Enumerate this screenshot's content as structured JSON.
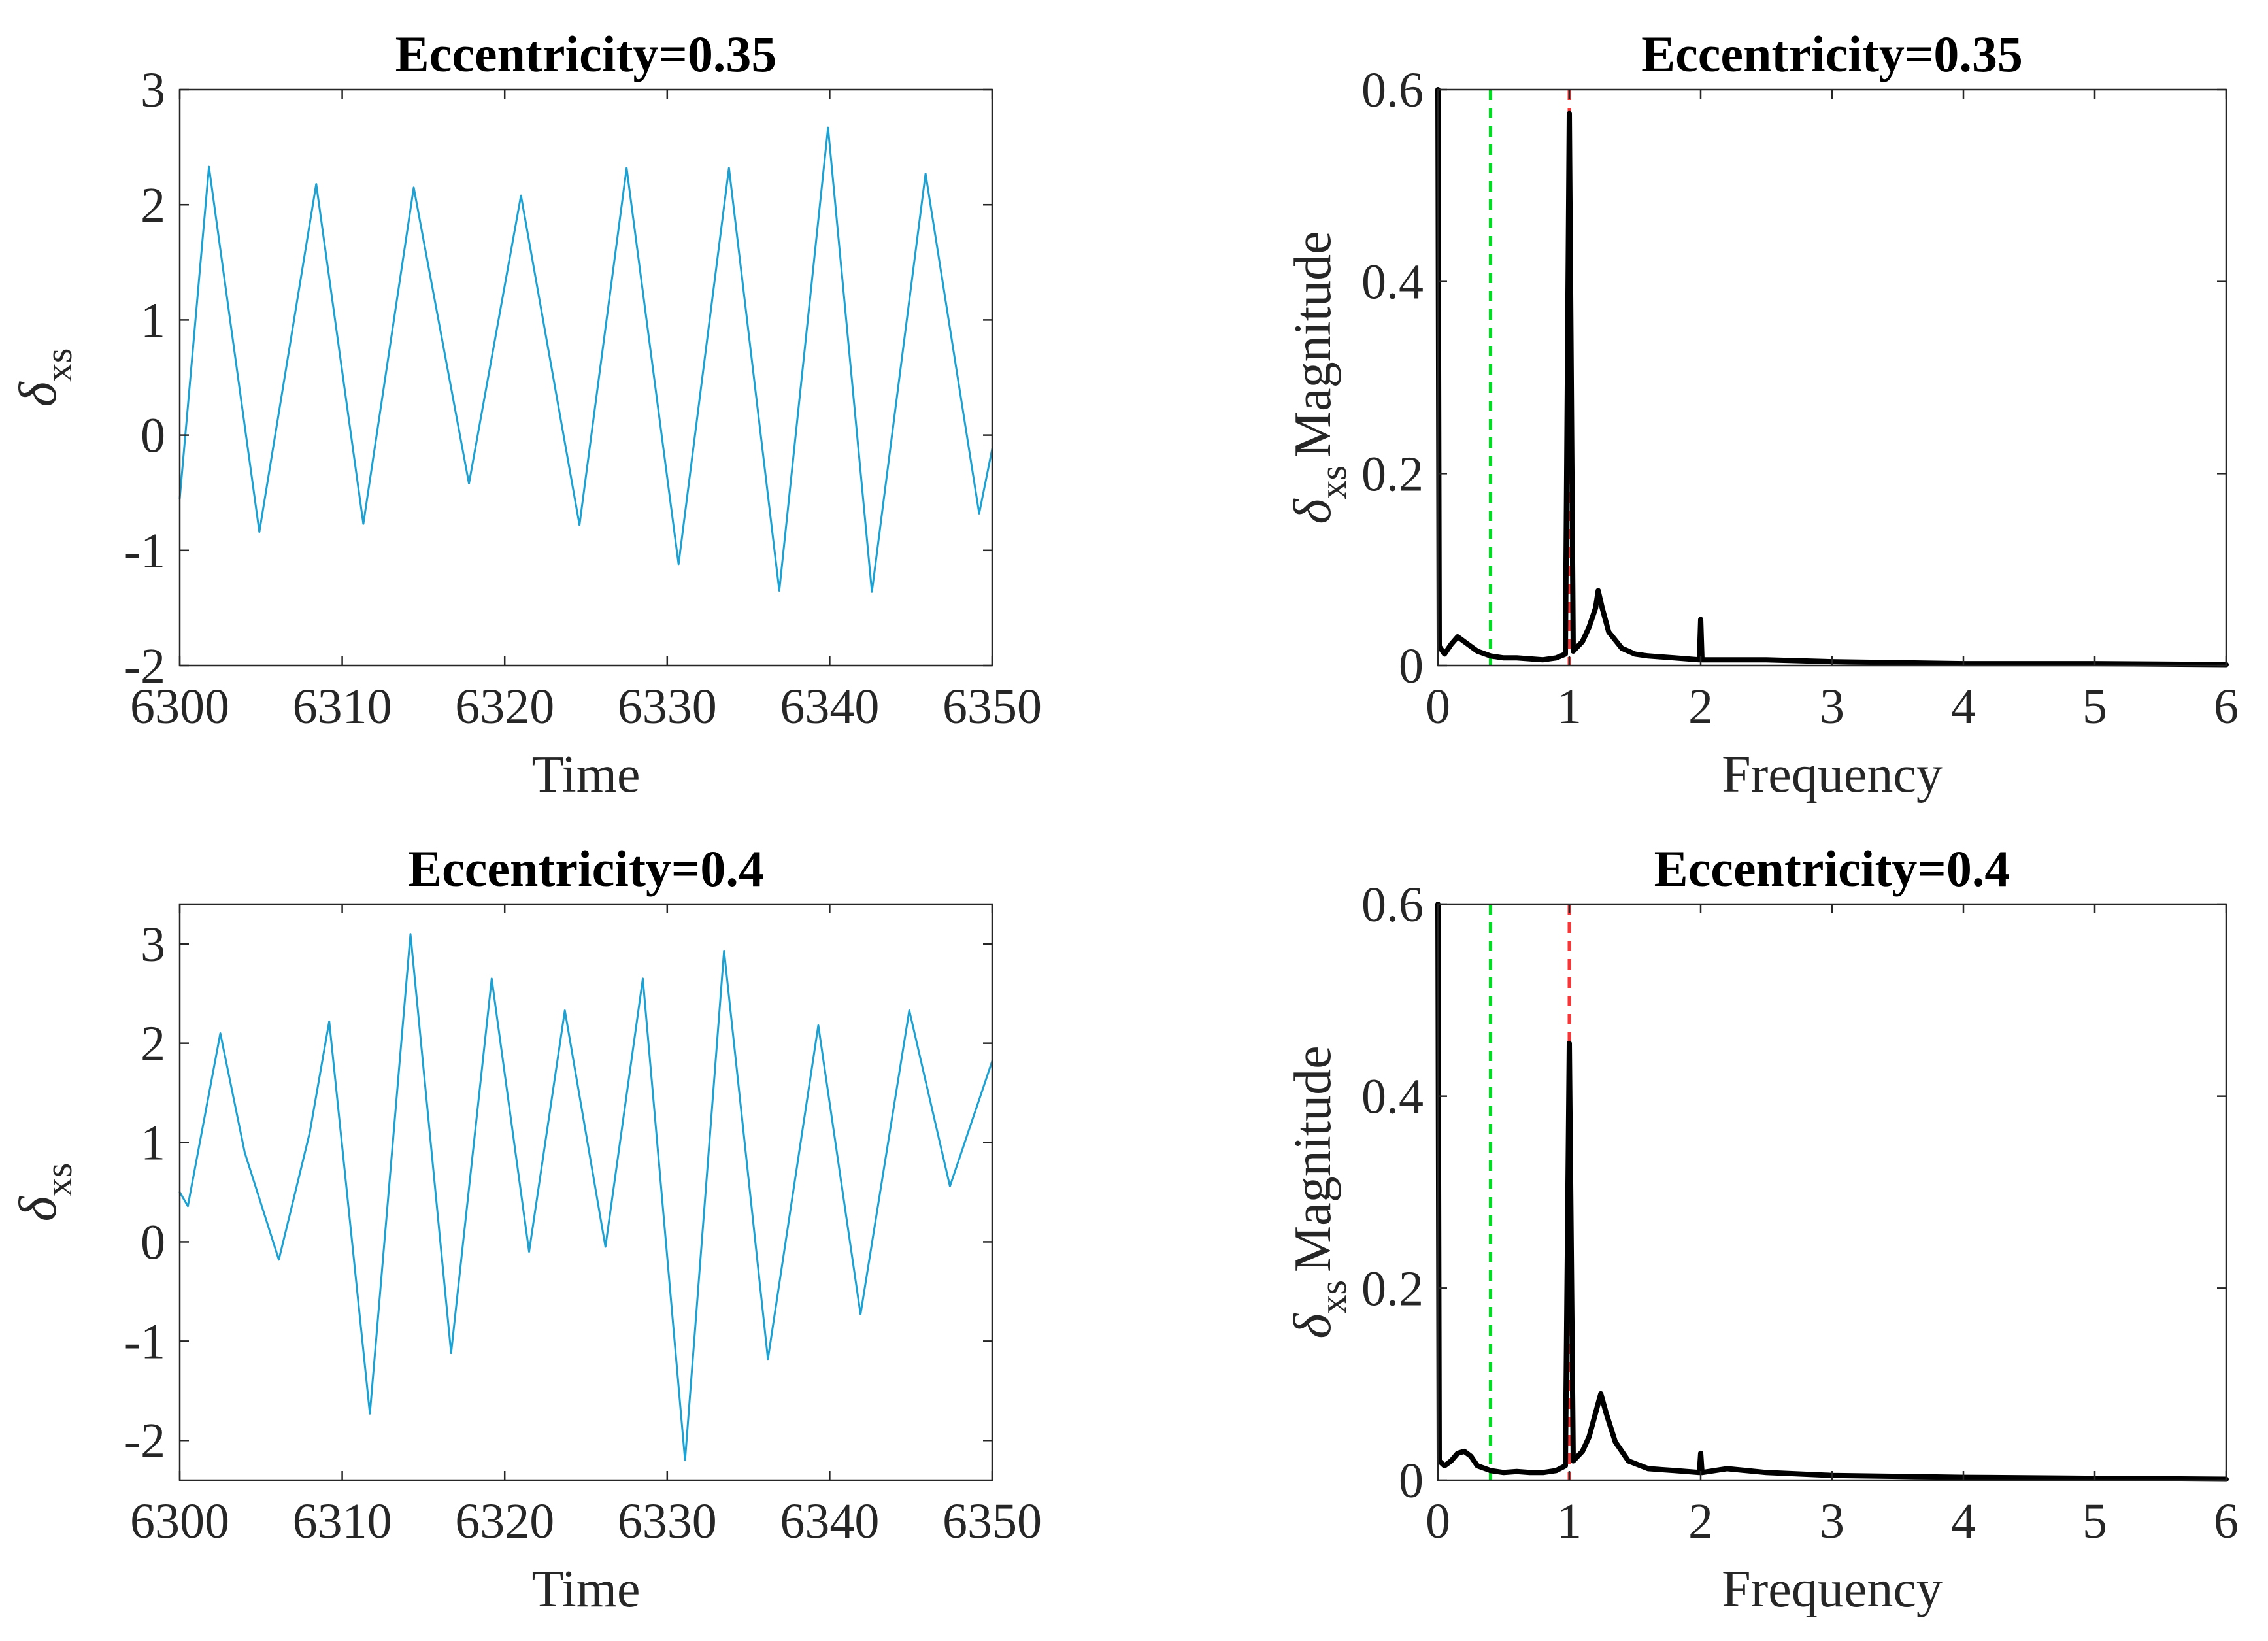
{
  "chart_data": [
    {
      "type": "line",
      "panel": "top-left",
      "title": "Eccentricity=0.35",
      "xlabel": "Time",
      "ylabel_symbol": "δ",
      "ylabel_subscript": "xs",
      "ylabel_suffix": "",
      "xlim": [
        6300,
        6350
      ],
      "ylim": [
        -2,
        3
      ],
      "xticks": [
        6300,
        6310,
        6320,
        6330,
        6340,
        6350
      ],
      "yticks": [
        -2,
        -1,
        0,
        1,
        2,
        3
      ],
      "line_color": "#1da1d2",
      "series": [
        {
          "name": "delta_xs",
          "points": [
            [
              6300,
              -0.55
            ],
            [
              6301.8,
              2.33
            ],
            [
              6304.9,
              -0.84
            ],
            [
              6308.4,
              2.18
            ],
            [
              6311.3,
              -0.77
            ],
            [
              6314.4,
              2.15
            ],
            [
              6317.8,
              -0.42
            ],
            [
              6321.0,
              2.08
            ],
            [
              6324.6,
              -0.78
            ],
            [
              6327.5,
              2.32
            ],
            [
              6330.7,
              -1.12
            ],
            [
              6333.8,
              2.32
            ],
            [
              6336.9,
              -1.35
            ],
            [
              6339.9,
              2.67
            ],
            [
              6342.6,
              -1.36
            ],
            [
              6345.9,
              2.27
            ],
            [
              6349.2,
              -0.68
            ],
            [
              6350,
              -0.12
            ]
          ]
        }
      ]
    },
    {
      "type": "line",
      "panel": "top-right",
      "title": "Eccentricity=0.35",
      "xlabel": "Frequency",
      "ylabel_symbol": "δ",
      "ylabel_subscript": "xs",
      "ylabel_suffix": "Magnitude",
      "xlim": [
        0,
        6
      ],
      "ylim": [
        0,
        0.6
      ],
      "xticks": [
        0,
        1,
        2,
        3,
        4,
        5,
        6
      ],
      "yticks": [
        0,
        0.2,
        0.4,
        0.6
      ],
      "line_color": "#000000",
      "reference_lines": [
        {
          "x": 0.4,
          "color": "#00dd22",
          "style": "dashed"
        },
        {
          "x": 1.0,
          "color": "#ff3333",
          "style": "dashed"
        }
      ],
      "series": [
        {
          "name": "FFT magnitude",
          "points": [
            [
              0,
              0.6
            ],
            [
              0.01,
              0.02
            ],
            [
              0.05,
              0.012
            ],
            [
              0.1,
              0.022
            ],
            [
              0.15,
              0.03
            ],
            [
              0.2,
              0.025
            ],
            [
              0.3,
              0.015
            ],
            [
              0.4,
              0.01
            ],
            [
              0.5,
              0.008
            ],
            [
              0.6,
              0.008
            ],
            [
              0.7,
              0.007
            ],
            [
              0.8,
              0.006
            ],
            [
              0.9,
              0.008
            ],
            [
              0.97,
              0.012
            ],
            [
              1.0,
              0.575
            ],
            [
              1.03,
              0.015
            ],
            [
              1.1,
              0.025
            ],
            [
              1.15,
              0.04
            ],
            [
              1.2,
              0.06
            ],
            [
              1.22,
              0.078
            ],
            [
              1.25,
              0.06
            ],
            [
              1.3,
              0.035
            ],
            [
              1.4,
              0.018
            ],
            [
              1.5,
              0.012
            ],
            [
              1.6,
              0.01
            ],
            [
              1.8,
              0.008
            ],
            [
              1.99,
              0.006
            ],
            [
              2.0,
              0.048
            ],
            [
              2.01,
              0.006
            ],
            [
              2.2,
              0.006
            ],
            [
              2.5,
              0.006
            ],
            [
              3.0,
              0.004
            ],
            [
              3.5,
              0.003
            ],
            [
              4.0,
              0.002
            ],
            [
              5.0,
              0.002
            ],
            [
              6.0,
              0.001
            ]
          ]
        }
      ]
    },
    {
      "type": "line",
      "panel": "bottom-left",
      "title": "Eccentricity=0.4",
      "xlabel": "Time",
      "ylabel_symbol": "δ",
      "ylabel_subscript": "xs",
      "ylabel_suffix": "",
      "xlim": [
        6300,
        6350
      ],
      "ylim": [
        -2.4,
        3.4
      ],
      "xticks": [
        6300,
        6310,
        6320,
        6330,
        6340,
        6350
      ],
      "yticks": [
        -2,
        -1,
        0,
        1,
        2,
        3
      ],
      "line_color": "#1da1d2",
      "series": [
        {
          "name": "delta_xs",
          "points": [
            [
              6300,
              0.5
            ],
            [
              6300.5,
              0.36
            ],
            [
              6302.5,
              2.1
            ],
            [
              6304.0,
              0.9
            ],
            [
              6306.1,
              -0.18
            ],
            [
              6308.0,
              1.1
            ],
            [
              6309.2,
              2.22
            ],
            [
              6311.7,
              -1.73
            ],
            [
              6314.2,
              3.1
            ],
            [
              6316.7,
              -1.12
            ],
            [
              6319.2,
              2.65
            ],
            [
              6321.5,
              -0.1
            ],
            [
              6323.7,
              2.33
            ],
            [
              6326.2,
              -0.05
            ],
            [
              6328.5,
              2.65
            ],
            [
              6331.1,
              -2.2
            ],
            [
              6333.5,
              2.93
            ],
            [
              6336.2,
              -1.18
            ],
            [
              6339.3,
              2.18
            ],
            [
              6341.9,
              -0.73
            ],
            [
              6344.9,
              2.33
            ],
            [
              6347.4,
              0.56
            ],
            [
              6350,
              1.82
            ]
          ]
        }
      ]
    },
    {
      "type": "line",
      "panel": "bottom-right",
      "title": "Eccentricity=0.4",
      "xlabel": "Frequency",
      "ylabel_symbol": "δ",
      "ylabel_subscript": "xs",
      "ylabel_suffix": "Magnitude",
      "xlim": [
        0,
        6
      ],
      "ylim": [
        0,
        0.6
      ],
      "xticks": [
        0,
        1,
        2,
        3,
        4,
        5,
        6
      ],
      "yticks": [
        0,
        0.2,
        0.4,
        0.6
      ],
      "line_color": "#000000",
      "reference_lines": [
        {
          "x": 0.4,
          "color": "#00dd22",
          "style": "dashed"
        },
        {
          "x": 1.0,
          "color": "#ff3333",
          "style": "dashed"
        }
      ],
      "series": [
        {
          "name": "FFT magnitude",
          "points": [
            [
              0,
              0.6
            ],
            [
              0.01,
              0.02
            ],
            [
              0.05,
              0.015
            ],
            [
              0.1,
              0.02
            ],
            [
              0.15,
              0.028
            ],
            [
              0.2,
              0.03
            ],
            [
              0.25,
              0.025
            ],
            [
              0.3,
              0.015
            ],
            [
              0.4,
              0.01
            ],
            [
              0.5,
              0.008
            ],
            [
              0.6,
              0.009
            ],
            [
              0.7,
              0.008
            ],
            [
              0.8,
              0.008
            ],
            [
              0.9,
              0.01
            ],
            [
              0.97,
              0.015
            ],
            [
              1.0,
              0.455
            ],
            [
              1.03,
              0.02
            ],
            [
              1.1,
              0.03
            ],
            [
              1.15,
              0.045
            ],
            [
              1.2,
              0.07
            ],
            [
              1.24,
              0.09
            ],
            [
              1.28,
              0.07
            ],
            [
              1.35,
              0.04
            ],
            [
              1.45,
              0.02
            ],
            [
              1.6,
              0.012
            ],
            [
              1.8,
              0.01
            ],
            [
              1.99,
              0.008
            ],
            [
              2.0,
              0.028
            ],
            [
              2.01,
              0.008
            ],
            [
              2.2,
              0.012
            ],
            [
              2.5,
              0.008
            ],
            [
              3.0,
              0.005
            ],
            [
              3.5,
              0.004
            ],
            [
              4.0,
              0.003
            ],
            [
              5.0,
              0.002
            ],
            [
              6.0,
              0.001
            ]
          ]
        }
      ]
    }
  ]
}
